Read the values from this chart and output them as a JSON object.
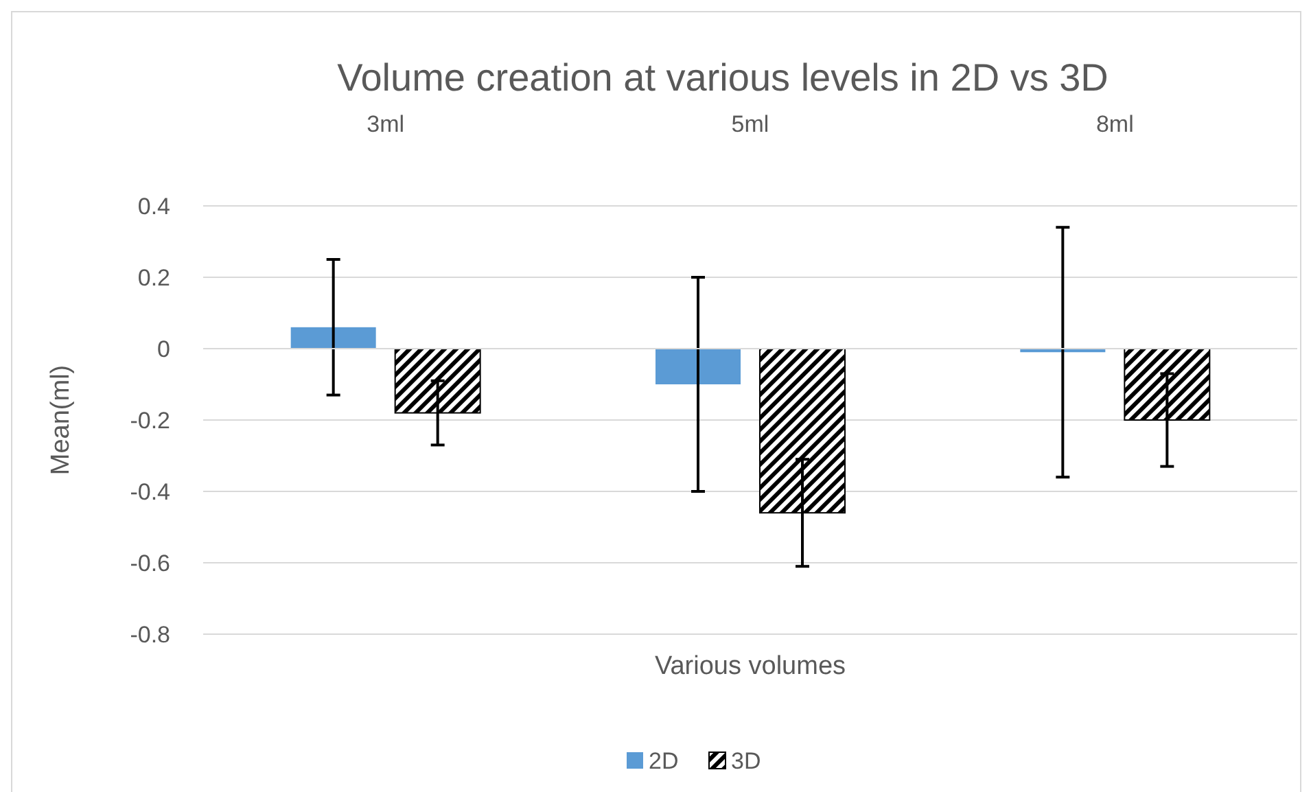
{
  "chart_data": {
    "type": "bar",
    "title": "Volume creation at various levels in 2D vs 3D",
    "xlabel": "Various volumes",
    "ylabel": "Mean(ml)",
    "categories": [
      "3ml",
      "5ml",
      "8ml"
    ],
    "series": [
      {
        "name": "2D",
        "color": "#5b9bd5",
        "values": [
          0.06,
          -0.1,
          -0.01
        ],
        "errors": [
          0.19,
          0.3,
          0.35
        ]
      },
      {
        "name": "3D",
        "color": "#000000",
        "values": [
          -0.18,
          -0.46,
          -0.2
        ],
        "errors": [
          0.09,
          0.15,
          0.13
        ]
      }
    ],
    "ylim": [
      -0.8,
      0.4
    ],
    "yticks": [
      -0.8,
      -0.6,
      -0.4,
      -0.2,
      0,
      0.2,
      0.4
    ],
    "grid": "y",
    "legend": "bottom"
  }
}
